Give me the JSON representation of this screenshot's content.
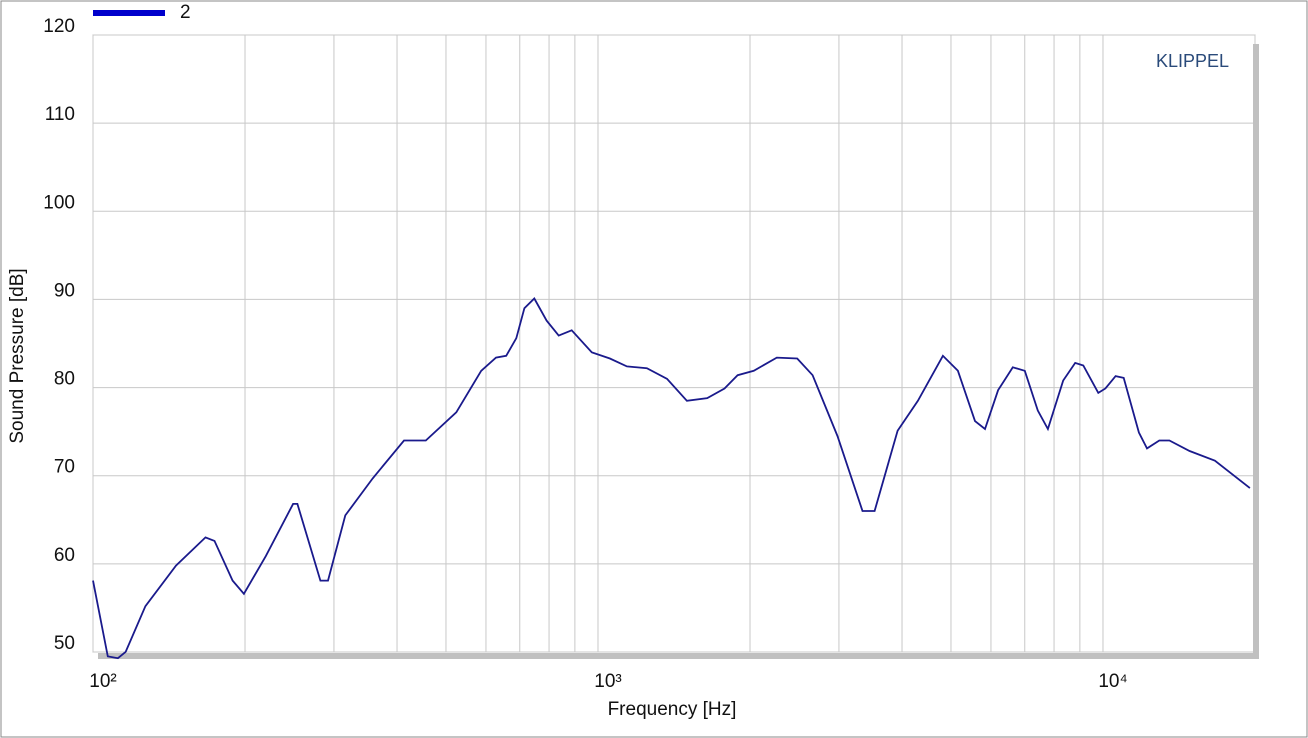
{
  "chart_data": {
    "type": "line",
    "x_label": "Frequency  [Hz]",
    "y_label": "Sound Pressure  [dB]",
    "annotation": "KLIPPEL",
    "xscale": "log",
    "grid": true,
    "xlim": [
      100,
      20000
    ],
    "ylim": [
      50,
      120
    ],
    "xticks": [
      {
        "value": 100,
        "label": "10²"
      },
      {
        "value": 1000,
        "label": "10³"
      },
      {
        "value": 10000,
        "label": "10⁴"
      }
    ],
    "xminor": [
      200,
      300,
      400,
      500,
      600,
      700,
      800,
      900,
      2000,
      3000,
      4000,
      5000,
      6000,
      7000,
      8000,
      9000,
      20000
    ],
    "yticks": [
      50,
      60,
      70,
      80,
      90,
      100,
      110,
      120
    ],
    "legend": "top-left",
    "x": [
      100,
      107,
      112,
      116,
      127,
      146,
      167,
      174,
      189,
      199,
      220,
      249,
      254,
      282,
      292,
      316,
      358,
      413,
      456,
      524,
      587,
      628,
      658,
      689,
      715,
      748,
      791,
      836,
      887,
      972,
      1056,
      1141,
      1250,
      1370,
      1500,
      1645,
      1780,
      1890,
      2035,
      2260,
      2480,
      2660,
      2980,
      3340,
      3530,
      3920,
      4300,
      4820,
      5160,
      5580,
      5840,
      6200,
      6630,
      7000,
      7430,
      7780,
      8340,
      8810,
      9140,
      9790,
      10110,
      10590,
      10990,
      11780,
      12220,
      12930,
      13540,
      14840,
      16660,
      19540
    ],
    "series": [
      {
        "name": "2",
        "color": "#1a1a8c",
        "legend_color": "#0000cc",
        "values": [
          58.1,
          49.5,
          49.3,
          50,
          55.2,
          59.8,
          63,
          62.6,
          58.1,
          56.6,
          60.9,
          66.8,
          66.8,
          58.1,
          58.1,
          65.5,
          69.7,
          74,
          74,
          77.2,
          81.9,
          83.4,
          83.6,
          85.6,
          89,
          90.1,
          87.6,
          85.9,
          86.5,
          84,
          83.3,
          82.4,
          82.2,
          81,
          78.5,
          78.8,
          79.9,
          81.4,
          81.9,
          83.4,
          83.3,
          81.4,
          74.5,
          66,
          66,
          75.1,
          78.5,
          83.6,
          81.9,
          76.2,
          75.3,
          79.7,
          82.3,
          81.9,
          77.4,
          75.3,
          80.8,
          82.8,
          82.5,
          79.4,
          79.9,
          81.3,
          81.1,
          74.9,
          73.1,
          74,
          74,
          72.8,
          71.7,
          68.6
        ]
      }
    ]
  }
}
